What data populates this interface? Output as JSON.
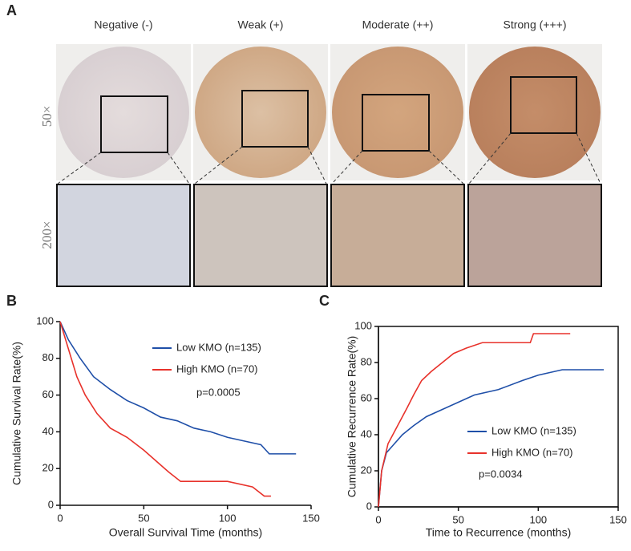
{
  "panel_a": {
    "label": "A",
    "columns": [
      "Negative (-)",
      "Weak (+)",
      "Moderate (++)",
      "Strong (+++)"
    ],
    "rows": [
      "50×",
      "200×"
    ]
  },
  "chart_data": [
    {
      "type": "line",
      "panel_label": "B",
      "y_label": "Cumulative Survival Rate(%)",
      "x_label": "Overall Survival Time (months)",
      "xlim": [
        0,
        150
      ],
      "xticks": [
        0,
        50,
        100,
        150
      ],
      "ylim": [
        0,
        100
      ],
      "yticks": [
        0,
        20,
        40,
        60,
        80,
        100
      ],
      "frame": false,
      "annotation": "p=0.0005",
      "series": [
        {
          "name": "Low KMO (n=135)",
          "color": "#1f4fa8",
          "x": [
            0,
            5,
            12,
            20,
            30,
            40,
            50,
            60,
            70,
            80,
            90,
            100,
            110,
            120,
            125,
            141
          ],
          "values": [
            100,
            90,
            80,
            70,
            63,
            57,
            53,
            48,
            46,
            42,
            40,
            37,
            35,
            33,
            28,
            28
          ]
        },
        {
          "name": "High KMO (n=70)",
          "color": "#e8322b",
          "x": [
            0,
            5,
            10,
            15,
            22,
            30,
            40,
            50,
            60,
            65,
            72,
            100,
            115,
            122,
            126
          ],
          "values": [
            100,
            85,
            70,
            60,
            50,
            42,
            37,
            30,
            22,
            18,
            13,
            13,
            10,
            5,
            5
          ]
        }
      ]
    },
    {
      "type": "line",
      "panel_label": "C",
      "y_label": "Cumulative Recurrence Rate(%)",
      "x_label": "Time to Recurrence (months)",
      "xlim": [
        0,
        150
      ],
      "xticks": [
        0,
        50,
        100,
        150
      ],
      "ylim": [
        0,
        100
      ],
      "yticks": [
        0,
        20,
        40,
        60,
        80,
        100
      ],
      "frame": true,
      "annotation": "p=0.0034",
      "series": [
        {
          "name": "Low KMO (n=135)",
          "color": "#1f4fa8",
          "x": [
            0,
            2,
            5,
            10,
            15,
            22,
            30,
            40,
            50,
            60,
            75,
            90,
            100,
            115,
            141
          ],
          "values": [
            0,
            20,
            30,
            35,
            40,
            45,
            50,
            54,
            58,
            62,
            65,
            70,
            73,
            76,
            76
          ]
        },
        {
          "name": "High KMO (n=70)",
          "color": "#e8322b",
          "x": [
            0,
            2,
            6,
            12,
            18,
            22,
            27,
            33,
            40,
            47,
            55,
            65,
            95,
            97,
            120
          ],
          "values": [
            0,
            20,
            35,
            45,
            55,
            62,
            70,
            75,
            80,
            85,
            88,
            91,
            91,
            96,
            96
          ]
        }
      ]
    }
  ]
}
